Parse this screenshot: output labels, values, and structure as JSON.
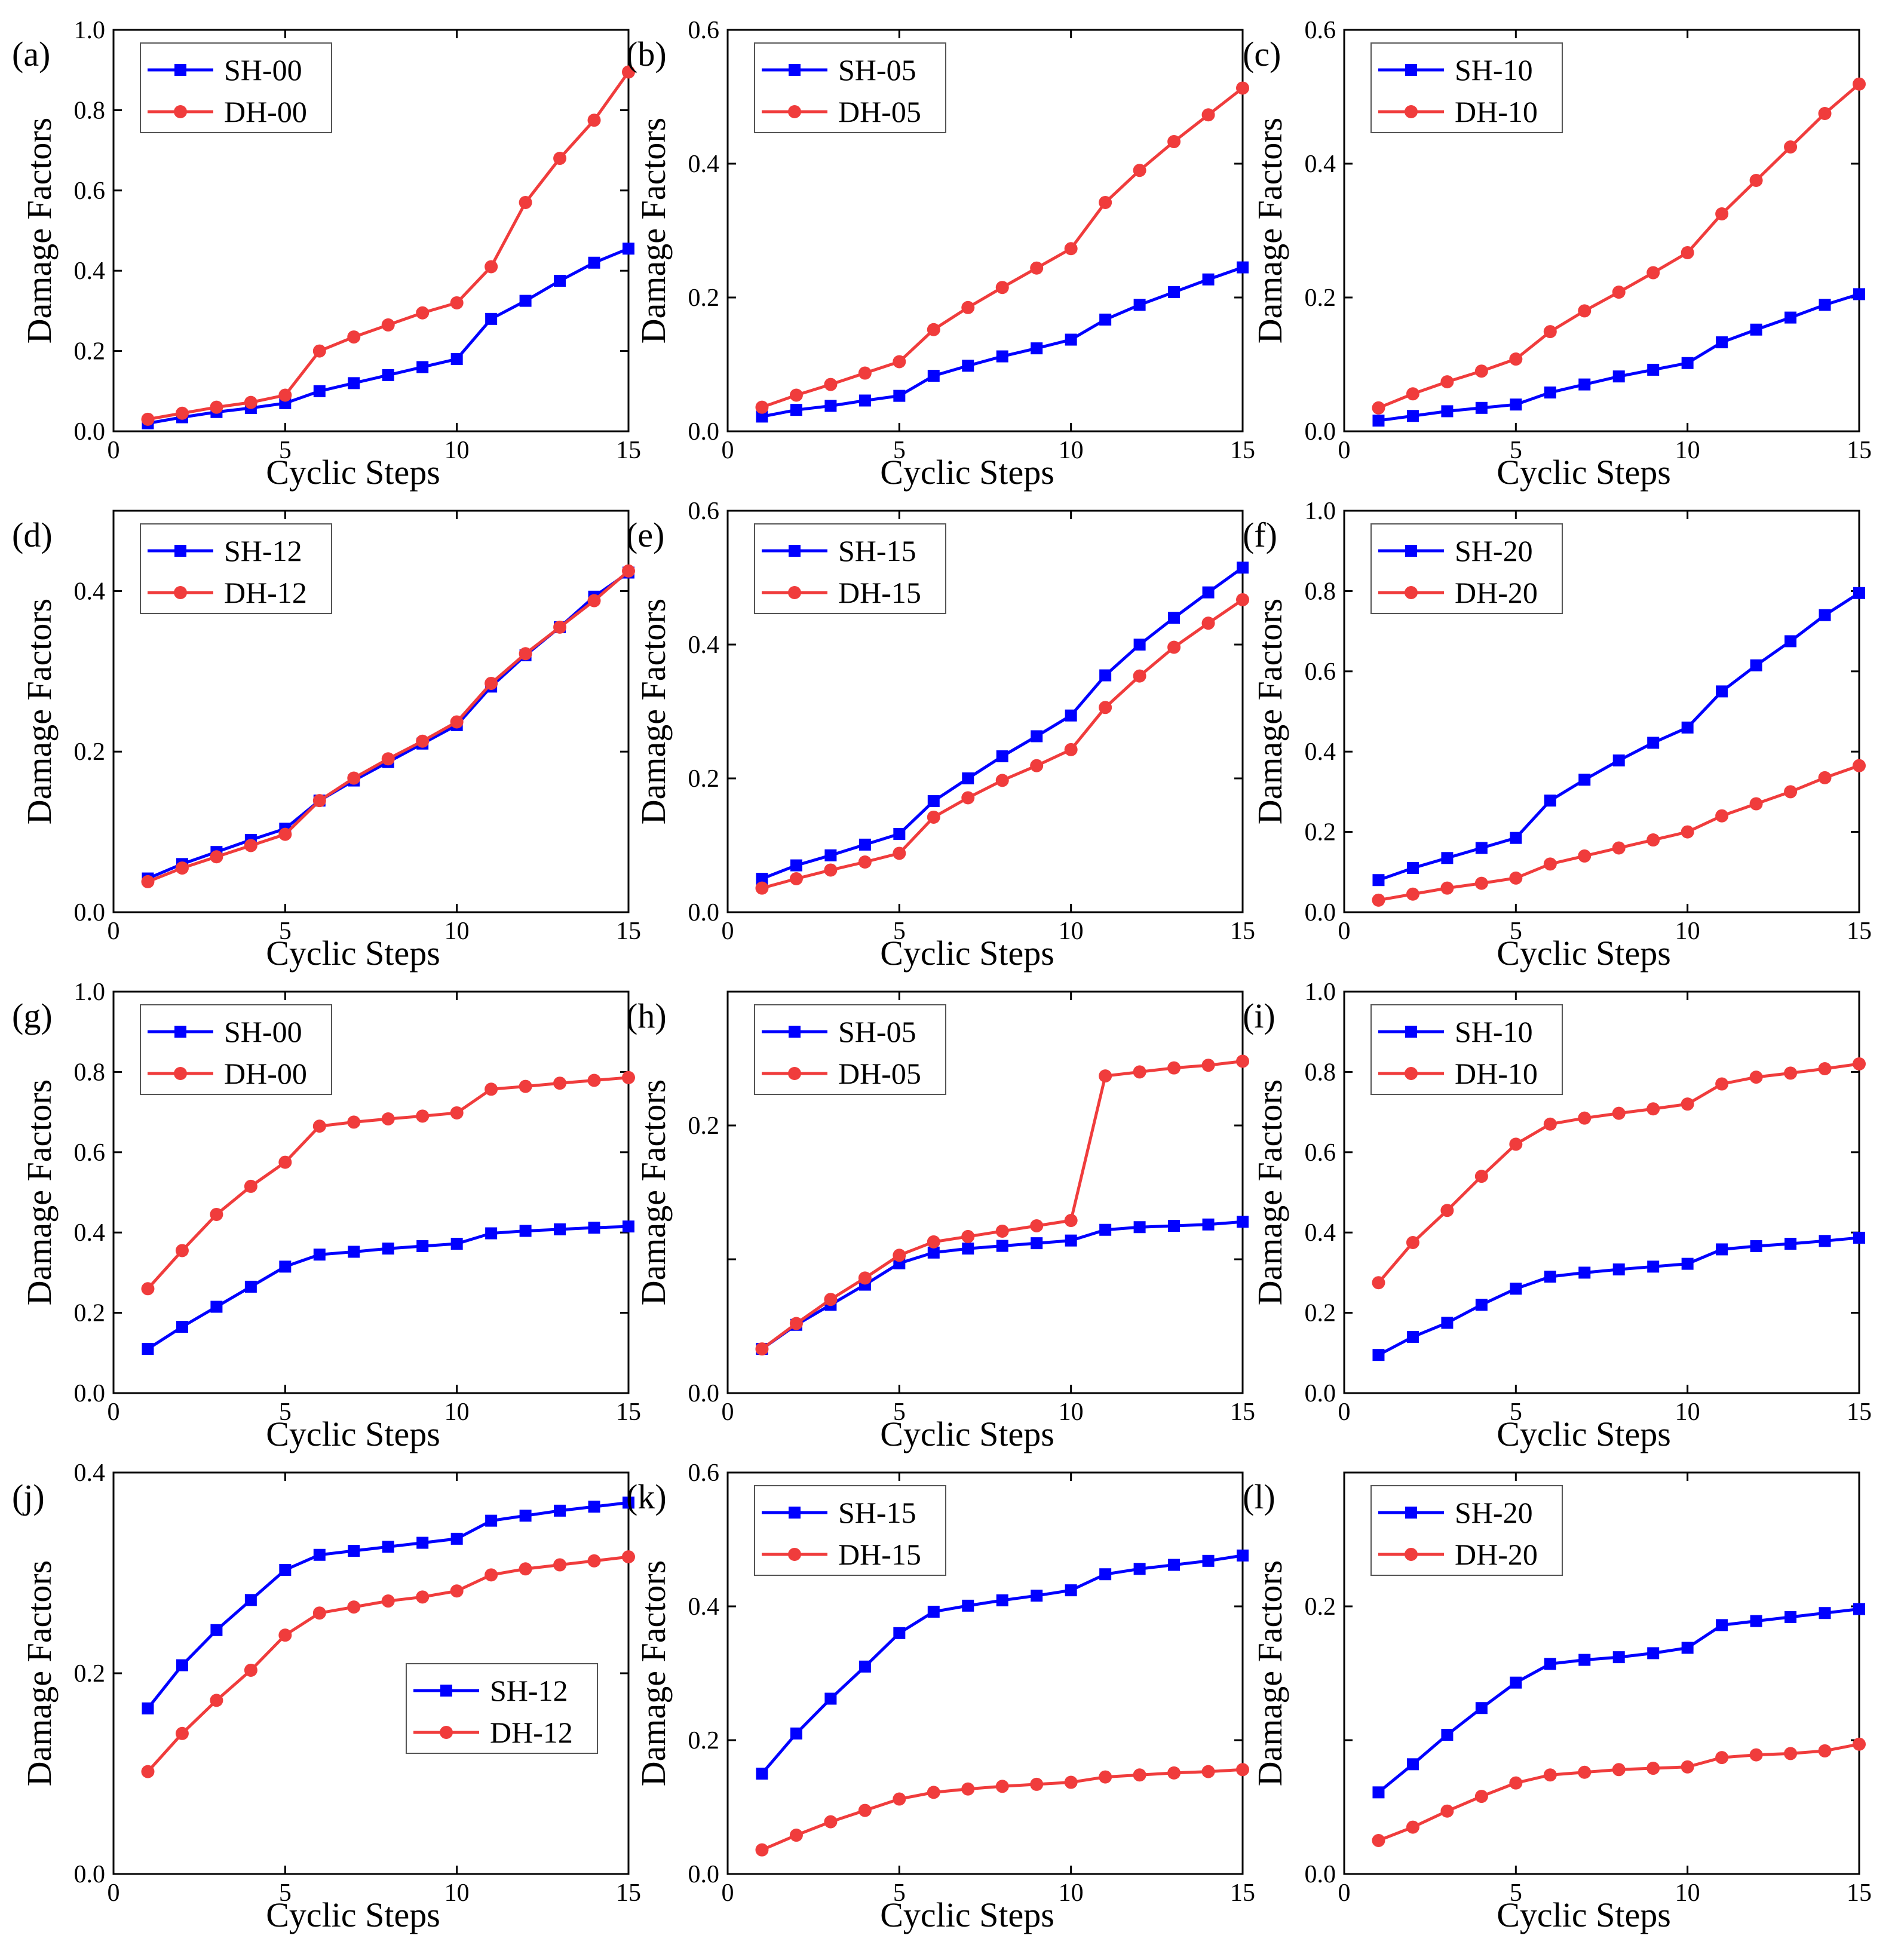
{
  "figure": {
    "description_labels": true
  },
  "colors": {
    "SH": "#0000ff",
    "DH": "#f03c3c"
  },
  "chart_data": [
    {
      "panel": "(a)",
      "type": "line",
      "xlabel": "Cyclic Steps",
      "ylabel": "Damage Factors",
      "xlim": [
        0,
        15
      ],
      "ylim": [
        0,
        1.0
      ],
      "xticks": [
        0,
        5,
        10,
        15
      ],
      "xtick_labels": [
        "0",
        "5",
        "10",
        "15"
      ],
      "yticks": [
        0,
        0.2,
        0.4,
        0.6,
        0.8,
        1.0
      ],
      "ytick_labels": [
        "0.0",
        "0.2",
        "0.4",
        "0.6",
        "0.8",
        "1.0"
      ],
      "legend_position": "top-left",
      "x": [
        1,
        2,
        3,
        4,
        5,
        6,
        7,
        8,
        9,
        10,
        11,
        12,
        13,
        14,
        15
      ],
      "series": [
        {
          "name": "SH-00",
          "marker": "square",
          "color": "#0000ff",
          "values": [
            0.02,
            0.035,
            0.048,
            0.058,
            0.07,
            0.1,
            0.12,
            0.14,
            0.16,
            0.18,
            0.28,
            0.325,
            0.375,
            0.42,
            0.455
          ]
        },
        {
          "name": "DH-00",
          "marker": "circle",
          "color": "#f03c3c",
          "values": [
            0.03,
            0.045,
            0.06,
            0.072,
            0.09,
            0.2,
            0.235,
            0.265,
            0.295,
            0.32,
            0.41,
            0.57,
            0.68,
            0.775,
            0.895
          ]
        }
      ]
    },
    {
      "panel": "(b)",
      "type": "line",
      "xlabel": "Cyclic Steps",
      "ylabel": "Damage Factors",
      "xlim": [
        0,
        15
      ],
      "ylim": [
        0,
        0.6
      ],
      "xticks": [
        0,
        5,
        10,
        15
      ],
      "xtick_labels": [
        "0",
        "5",
        "10",
        "15"
      ],
      "yticks": [
        0,
        0.2,
        0.4,
        0.6
      ],
      "ytick_labels": [
        "0.0",
        "0.2",
        "0.4",
        "0.6"
      ],
      "legend_position": "top-left",
      "x": [
        1,
        2,
        3,
        4,
        5,
        6,
        7,
        8,
        9,
        10,
        11,
        12,
        13,
        14,
        15
      ],
      "series": [
        {
          "name": "SH-05",
          "marker": "square",
          "color": "#0000ff",
          "values": [
            0.022,
            0.032,
            0.038,
            0.046,
            0.053,
            0.083,
            0.098,
            0.112,
            0.124,
            0.137,
            0.167,
            0.189,
            0.208,
            0.227,
            0.245
          ]
        },
        {
          "name": "DH-05",
          "marker": "circle",
          "color": "#f03c3c",
          "values": [
            0.036,
            0.054,
            0.07,
            0.087,
            0.104,
            0.152,
            0.185,
            0.215,
            0.244,
            0.273,
            0.342,
            0.39,
            0.433,
            0.473,
            0.513
          ]
        }
      ]
    },
    {
      "panel": "(c)",
      "type": "line",
      "xlabel": "Cyclic Steps",
      "ylabel": "Damage Factors",
      "xlim": [
        0,
        15
      ],
      "ylim": [
        0,
        0.6
      ],
      "xticks": [
        0,
        5,
        10,
        15
      ],
      "xtick_labels": [
        "0",
        "5",
        "10",
        "15"
      ],
      "yticks": [
        0,
        0.2,
        0.4,
        0.6
      ],
      "ytick_labels": [
        "0.0",
        "0.2",
        "0.4",
        "0.6"
      ],
      "legend_position": "top-left",
      "x": [
        1,
        2,
        3,
        4,
        5,
        6,
        7,
        8,
        9,
        10,
        11,
        12,
        13,
        14,
        15
      ],
      "series": [
        {
          "name": "SH-10",
          "marker": "square",
          "color": "#0000ff",
          "values": [
            0.016,
            0.023,
            0.03,
            0.035,
            0.04,
            0.058,
            0.07,
            0.082,
            0.092,
            0.102,
            0.133,
            0.152,
            0.17,
            0.189,
            0.205
          ]
        },
        {
          "name": "DH-10",
          "marker": "circle",
          "color": "#f03c3c",
          "values": [
            0.035,
            0.056,
            0.074,
            0.09,
            0.108,
            0.149,
            0.18,
            0.208,
            0.237,
            0.267,
            0.325,
            0.375,
            0.425,
            0.475,
            0.519
          ]
        }
      ]
    },
    {
      "panel": "(d)",
      "type": "line",
      "xlabel": "Cyclic Steps",
      "ylabel": "Damage Factors",
      "xlim": [
        0,
        15
      ],
      "ylim": [
        0,
        0.5
      ],
      "xticks": [
        0,
        5,
        10,
        15
      ],
      "xtick_labels": [
        "0",
        "5",
        "10",
        "15"
      ],
      "yticks": [
        0,
        0.2,
        0.4
      ],
      "ytick_labels": [
        "0.0",
        "0.2",
        "0.4"
      ],
      "legend_position": "top-left",
      "x": [
        1,
        2,
        3,
        4,
        5,
        6,
        7,
        8,
        9,
        10,
        11,
        12,
        13,
        14,
        15
      ],
      "series": [
        {
          "name": "SH-12",
          "marker": "square",
          "color": "#0000ff",
          "values": [
            0.042,
            0.06,
            0.075,
            0.09,
            0.104,
            0.139,
            0.164,
            0.187,
            0.21,
            0.233,
            0.281,
            0.32,
            0.355,
            0.393,
            0.423
          ]
        },
        {
          "name": "DH-12",
          "marker": "circle",
          "color": "#f03c3c",
          "values": [
            0.038,
            0.055,
            0.069,
            0.083,
            0.097,
            0.139,
            0.167,
            0.191,
            0.213,
            0.237,
            0.285,
            0.322,
            0.355,
            0.388,
            0.425
          ]
        }
      ]
    },
    {
      "panel": "(e)",
      "type": "line",
      "xlabel": "Cyclic Steps",
      "ylabel": "Damage Factors",
      "xlim": [
        0,
        15
      ],
      "ylim": [
        0,
        0.6
      ],
      "xticks": [
        0,
        5,
        10,
        15
      ],
      "xtick_labels": [
        "0",
        "5",
        "10",
        "15"
      ],
      "yticks": [
        0,
        0.2,
        0.4,
        0.6
      ],
      "ytick_labels": [
        "0.0",
        "0.2",
        "0.4",
        "0.6"
      ],
      "legend_position": "top-left",
      "x": [
        1,
        2,
        3,
        4,
        5,
        6,
        7,
        8,
        9,
        10,
        11,
        12,
        13,
        14,
        15
      ],
      "series": [
        {
          "name": "SH-15",
          "marker": "square",
          "color": "#0000ff",
          "values": [
            0.05,
            0.07,
            0.085,
            0.101,
            0.117,
            0.166,
            0.2,
            0.233,
            0.263,
            0.294,
            0.354,
            0.4,
            0.44,
            0.478,
            0.515
          ]
        },
        {
          "name": "DH-15",
          "marker": "circle",
          "color": "#f03c3c",
          "values": [
            0.036,
            0.05,
            0.063,
            0.075,
            0.088,
            0.142,
            0.171,
            0.197,
            0.219,
            0.243,
            0.306,
            0.353,
            0.396,
            0.432,
            0.467
          ]
        }
      ]
    },
    {
      "panel": "(f)",
      "type": "line",
      "xlabel": "Cyclic Steps",
      "ylabel": "Damage Factors",
      "xlim": [
        0,
        15
      ],
      "ylim": [
        0,
        1.0
      ],
      "xticks": [
        0,
        5,
        10,
        15
      ],
      "xtick_labels": [
        "0",
        "5",
        "10",
        "15"
      ],
      "yticks": [
        0,
        0.2,
        0.4,
        0.6,
        0.8,
        1.0
      ],
      "ytick_labels": [
        "0.0",
        "0.2",
        "0.4",
        "0.6",
        "0.8",
        "1.0"
      ],
      "legend_position": "top-left",
      "x": [
        1,
        2,
        3,
        4,
        5,
        6,
        7,
        8,
        9,
        10,
        11,
        12,
        13,
        14,
        15
      ],
      "series": [
        {
          "name": "SH-20",
          "marker": "square",
          "color": "#0000ff",
          "values": [
            0.08,
            0.11,
            0.135,
            0.16,
            0.185,
            0.278,
            0.33,
            0.378,
            0.422,
            0.46,
            0.55,
            0.615,
            0.675,
            0.74,
            0.795
          ]
        },
        {
          "name": "DH-20",
          "marker": "circle",
          "color": "#f03c3c",
          "values": [
            0.03,
            0.045,
            0.06,
            0.072,
            0.085,
            0.12,
            0.14,
            0.16,
            0.18,
            0.2,
            0.24,
            0.27,
            0.3,
            0.335,
            0.365
          ]
        }
      ]
    },
    {
      "panel": "(g)",
      "type": "line",
      "xlabel": "Cyclic Steps",
      "ylabel": "Damage Factors",
      "xlim": [
        0,
        15
      ],
      "ylim": [
        0,
        1.0
      ],
      "xticks": [
        0,
        5,
        10,
        15
      ],
      "xtick_labels": [
        "0",
        "5",
        "10",
        "15"
      ],
      "yticks": [
        0,
        0.2,
        0.4,
        0.6,
        0.8,
        1.0
      ],
      "ytick_labels": [
        "0.0",
        "0.2",
        "0.4",
        "0.6",
        "0.8",
        "1.0"
      ],
      "legend_position": "top-left",
      "x": [
        1,
        2,
        3,
        4,
        5,
        6,
        7,
        8,
        9,
        10,
        11,
        12,
        13,
        14,
        15
      ],
      "series": [
        {
          "name": "SH-00",
          "marker": "square",
          "color": "#0000ff",
          "values": [
            0.11,
            0.165,
            0.215,
            0.265,
            0.315,
            0.345,
            0.352,
            0.36,
            0.366,
            0.372,
            0.398,
            0.404,
            0.408,
            0.412,
            0.415
          ]
        },
        {
          "name": "DH-00",
          "marker": "circle",
          "color": "#f03c3c",
          "values": [
            0.26,
            0.355,
            0.445,
            0.515,
            0.575,
            0.665,
            0.675,
            0.683,
            0.69,
            0.698,
            0.757,
            0.764,
            0.772,
            0.779,
            0.786
          ]
        }
      ]
    },
    {
      "panel": "(h)",
      "type": "line",
      "xlabel": "Cyclic Steps",
      "ylabel": "Damage Factors",
      "xlim": [
        0,
        15
      ],
      "ylim": [
        0,
        0.3
      ],
      "xticks": [
        0,
        5,
        10,
        15
      ],
      "xtick_labels": [
        "0",
        "5",
        "10",
        "15"
      ],
      "yticks": [
        0,
        0.1,
        0.2
      ],
      "ytick_labels": [
        "0.0",
        "",
        "0.2"
      ],
      "legend_position": "top-left",
      "x": [
        1,
        2,
        3,
        4,
        5,
        6,
        7,
        8,
        9,
        10,
        11,
        12,
        13,
        14,
        15
      ],
      "series": [
        {
          "name": "SH-05",
          "marker": "square",
          "color": "#0000ff",
          "values": [
            0.033,
            0.051,
            0.066,
            0.081,
            0.097,
            0.105,
            0.108,
            0.11,
            0.112,
            0.114,
            0.122,
            0.124,
            0.125,
            0.126,
            0.128
          ]
        },
        {
          "name": "DH-05",
          "marker": "circle",
          "color": "#f03c3c",
          "values": [
            0.033,
            0.052,
            0.07,
            0.086,
            0.103,
            0.113,
            0.117,
            0.121,
            0.125,
            0.129,
            0.237,
            0.24,
            0.243,
            0.245,
            0.248
          ]
        }
      ]
    },
    {
      "panel": "(i)",
      "type": "line",
      "xlabel": "Cyclic Steps",
      "ylabel": "Damage Factors",
      "xlim": [
        0,
        15
      ],
      "ylim": [
        0,
        1.0
      ],
      "xticks": [
        0,
        5,
        10,
        15
      ],
      "xtick_labels": [
        "0",
        "5",
        "10",
        "15"
      ],
      "yticks": [
        0,
        0.2,
        0.4,
        0.6,
        0.8,
        1.0
      ],
      "ytick_labels": [
        "0.0",
        "0.2",
        "0.4",
        "0.6",
        "0.8",
        "1.0"
      ],
      "legend_position": "top-left",
      "x": [
        1,
        2,
        3,
        4,
        5,
        6,
        7,
        8,
        9,
        10,
        11,
        12,
        13,
        14,
        15
      ],
      "series": [
        {
          "name": "SH-10",
          "marker": "square",
          "color": "#0000ff",
          "values": [
            0.095,
            0.14,
            0.175,
            0.22,
            0.26,
            0.29,
            0.3,
            0.308,
            0.315,
            0.322,
            0.358,
            0.366,
            0.372,
            0.379,
            0.387
          ]
        },
        {
          "name": "DH-10",
          "marker": "circle",
          "color": "#f03c3c",
          "values": [
            0.275,
            0.375,
            0.455,
            0.54,
            0.62,
            0.67,
            0.685,
            0.697,
            0.708,
            0.72,
            0.77,
            0.787,
            0.797,
            0.808,
            0.82
          ]
        }
      ]
    },
    {
      "panel": "(j)",
      "type": "line",
      "xlabel": "Cyclic Steps",
      "ylabel": "Damage Factors",
      "xlim": [
        0,
        15
      ],
      "ylim": [
        0,
        0.4
      ],
      "xticks": [
        0,
        5,
        10,
        15
      ],
      "xtick_labels": [
        "0",
        "5",
        "10",
        "15"
      ],
      "yticks": [
        0,
        0.2,
        0.4
      ],
      "ytick_labels": [
        "0.0",
        "0.2",
        "0.4"
      ],
      "legend_position": "center-right",
      "x": [
        1,
        2,
        3,
        4,
        5,
        6,
        7,
        8,
        9,
        10,
        11,
        12,
        13,
        14,
        15
      ],
      "series": [
        {
          "name": "SH-12",
          "marker": "square",
          "color": "#0000ff",
          "values": [
            0.165,
            0.208,
            0.243,
            0.273,
            0.303,
            0.318,
            0.322,
            0.326,
            0.33,
            0.334,
            0.352,
            0.357,
            0.362,
            0.366,
            0.37
          ]
        },
        {
          "name": "DH-12",
          "marker": "circle",
          "color": "#f03c3c",
          "values": [
            0.102,
            0.14,
            0.173,
            0.203,
            0.238,
            0.26,
            0.266,
            0.272,
            0.276,
            0.282,
            0.298,
            0.304,
            0.308,
            0.312,
            0.316
          ]
        }
      ]
    },
    {
      "panel": "(k)",
      "type": "line",
      "xlabel": "Cyclic Steps",
      "ylabel": "Damage Factors",
      "xlim": [
        0,
        15
      ],
      "ylim": [
        0,
        0.6
      ],
      "xticks": [
        0,
        5,
        10,
        15
      ],
      "xtick_labels": [
        "0",
        "5",
        "10",
        "15"
      ],
      "yticks": [
        0,
        0.2,
        0.4,
        0.6
      ],
      "ytick_labels": [
        "0.0",
        "0.2",
        "0.4",
        "0.6"
      ],
      "legend_position": "top-left",
      "x": [
        1,
        2,
        3,
        4,
        5,
        6,
        7,
        8,
        9,
        10,
        11,
        12,
        13,
        14,
        15
      ],
      "series": [
        {
          "name": "SH-15",
          "marker": "square",
          "color": "#0000ff",
          "values": [
            0.15,
            0.21,
            0.262,
            0.31,
            0.36,
            0.392,
            0.401,
            0.409,
            0.416,
            0.424,
            0.448,
            0.456,
            0.462,
            0.468,
            0.476
          ]
        },
        {
          "name": "DH-15",
          "marker": "circle",
          "color": "#f03c3c",
          "values": [
            0.036,
            0.058,
            0.078,
            0.095,
            0.112,
            0.122,
            0.127,
            0.131,
            0.134,
            0.137,
            0.145,
            0.148,
            0.151,
            0.153,
            0.156
          ]
        }
      ]
    },
    {
      "panel": "(l)",
      "type": "line",
      "xlabel": "Cyclic Steps",
      "ylabel": "Damage Factors",
      "xlim": [
        0,
        15
      ],
      "ylim": [
        0,
        0.3
      ],
      "xticks": [
        0,
        5,
        10,
        15
      ],
      "xtick_labels": [
        "0",
        "5",
        "10",
        "15"
      ],
      "yticks": [
        0,
        0.1,
        0.2
      ],
      "ytick_labels": [
        "0.0",
        "",
        "0.2"
      ],
      "legend_position": "top-left",
      "x": [
        1,
        2,
        3,
        4,
        5,
        6,
        7,
        8,
        9,
        10,
        11,
        12,
        13,
        14,
        15
      ],
      "series": [
        {
          "name": "SH-20",
          "marker": "square",
          "color": "#0000ff",
          "values": [
            0.061,
            0.082,
            0.104,
            0.124,
            0.143,
            0.157,
            0.16,
            0.162,
            0.165,
            0.169,
            0.186,
            0.189,
            0.192,
            0.195,
            0.198
          ]
        },
        {
          "name": "DH-20",
          "marker": "circle",
          "color": "#f03c3c",
          "values": [
            0.025,
            0.035,
            0.047,
            0.058,
            0.068,
            0.074,
            0.076,
            0.078,
            0.079,
            0.08,
            0.087,
            0.089,
            0.09,
            0.092,
            0.097
          ]
        }
      ]
    }
  ]
}
